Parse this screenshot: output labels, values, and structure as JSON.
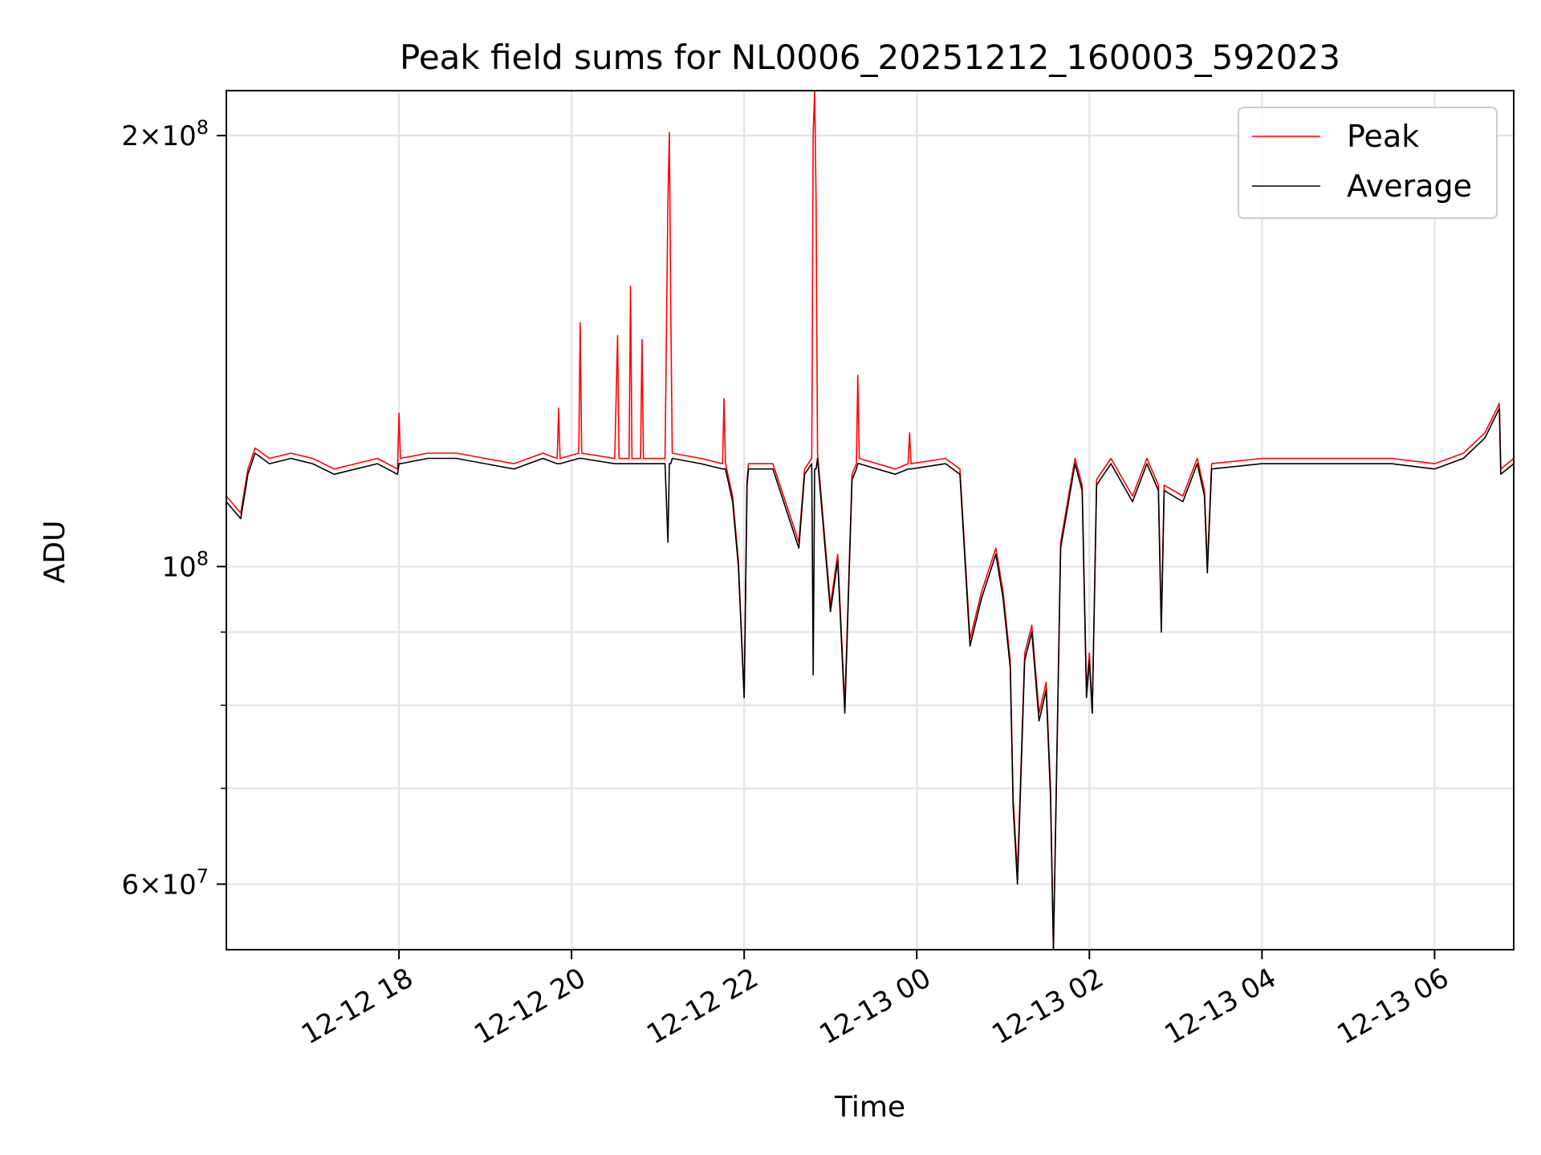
{
  "chart_data": {
    "type": "line",
    "title": "Peak field sums for NL0006_20251212_160003_592023",
    "xlabel": "Time",
    "ylabel": "ADU",
    "yscale": "log",
    "xlim": [
      "2025-12-12 16:00",
      "2025-12-13 06:55"
    ],
    "ylim": [
      54000000,
      215000000
    ],
    "grid": true,
    "legend": "upper-right",
    "x_ticks": [
      {
        "label": "12-12 18",
        "t": "2025-12-12 18:00"
      },
      {
        "label": "12-12 20",
        "t": "2025-12-12 20:00"
      },
      {
        "label": "12-12 22",
        "t": "2025-12-12 22:00"
      },
      {
        "label": "12-13 00",
        "t": "2025-12-13 00:00"
      },
      {
        "label": "12-13 02",
        "t": "2025-12-13 02:00"
      },
      {
        "label": "12-13 04",
        "t": "2025-12-13 04:00"
      },
      {
        "label": "12-13 06",
        "t": "2025-12-13 06:00"
      }
    ],
    "y_ticks_major": [
      {
        "label": "6×10⁷",
        "mant": "6",
        "exp": "7",
        "value": 60000000
      },
      {
        "label": "10⁸",
        "mant": "",
        "exp": "8",
        "value": 100000000
      },
      {
        "label": "2×10⁸",
        "mant": "2",
        "exp": "8",
        "value": 200000000
      }
    ],
    "y_ticks_minor": [
      70000000,
      80000000,
      90000000
    ],
    "series": [
      {
        "name": "Peak",
        "color": "#ff0000",
        "points": [
          [
            "2025-12-12 16:00",
            112000000
          ],
          [
            "2025-12-12 16:10",
            109000000
          ],
          [
            "2025-12-12 16:15",
            117000000
          ],
          [
            "2025-12-12 16:20",
            121000000
          ],
          [
            "2025-12-12 16:30",
            119000000
          ],
          [
            "2025-12-12 16:45",
            120000000
          ],
          [
            "2025-12-12 17:00",
            119000000
          ],
          [
            "2025-12-12 17:15",
            117000000
          ],
          [
            "2025-12-12 17:30",
            118000000
          ],
          [
            "2025-12-12 17:45",
            119000000
          ],
          [
            "2025-12-12 17:59",
            117000000
          ],
          [
            "2025-12-12 18:00",
            128000000
          ],
          [
            "2025-12-12 18:01",
            119000000
          ],
          [
            "2025-12-12 18:20",
            120000000
          ],
          [
            "2025-12-12 18:40",
            120000000
          ],
          [
            "2025-12-12 19:00",
            119000000
          ],
          [
            "2025-12-12 19:20",
            118000000
          ],
          [
            "2025-12-12 19:40",
            120000000
          ],
          [
            "2025-12-12 19:50",
            119000000
          ],
          [
            "2025-12-12 19:51",
            129000000
          ],
          [
            "2025-12-12 19:52",
            119000000
          ],
          [
            "2025-12-12 20:05",
            120000000
          ],
          [
            "2025-12-12 20:06",
            148000000
          ],
          [
            "2025-12-12 20:07",
            120000000
          ],
          [
            "2025-12-12 20:30",
            119000000
          ],
          [
            "2025-12-12 20:32",
            145000000
          ],
          [
            "2025-12-12 20:33",
            119000000
          ],
          [
            "2025-12-12 20:40",
            119000000
          ],
          [
            "2025-12-12 20:41",
            157000000
          ],
          [
            "2025-12-12 20:42",
            119000000
          ],
          [
            "2025-12-12 20:48",
            119000000
          ],
          [
            "2025-12-12 20:49",
            144000000
          ],
          [
            "2025-12-12 20:50",
            119000000
          ],
          [
            "2025-12-12 21:05",
            119000000
          ],
          [
            "2025-12-12 21:07",
            180000000
          ],
          [
            "2025-12-12 21:08",
            201000000
          ],
          [
            "2025-12-12 21:09",
            150000000
          ],
          [
            "2025-12-12 21:10",
            120000000
          ],
          [
            "2025-12-12 21:30",
            119000000
          ],
          [
            "2025-12-12 21:45",
            118000000
          ],
          [
            "2025-12-12 21:46",
            131000000
          ],
          [
            "2025-12-12 21:47",
            118000000
          ],
          [
            "2025-12-12 21:52",
            112000000
          ],
          [
            "2025-12-12 21:56",
            101000000
          ],
          [
            "2025-12-12 22:00",
            81000000
          ],
          [
            "2025-12-12 22:02",
            115000000
          ],
          [
            "2025-12-12 22:03",
            118000000
          ],
          [
            "2025-12-12 22:20",
            118000000
          ],
          [
            "2025-12-12 22:38",
            104000000
          ],
          [
            "2025-12-12 22:42",
            117000000
          ],
          [
            "2025-12-12 22:47",
            119000000
          ],
          [
            "2025-12-12 22:48",
            201000000
          ],
          [
            "2025-12-12 22:49",
            215000000
          ],
          [
            "2025-12-12 22:50",
            180000000
          ],
          [
            "2025-12-12 22:51",
            120000000
          ],
          [
            "2025-12-12 23:00",
            94000000
          ],
          [
            "2025-12-12 23:05",
            102000000
          ],
          [
            "2025-12-12 23:10",
            80000000
          ],
          [
            "2025-12-12 23:15",
            116000000
          ],
          [
            "2025-12-12 23:18",
            118000000
          ],
          [
            "2025-12-12 23:19",
            136000000
          ],
          [
            "2025-12-12 23:20",
            119000000
          ],
          [
            "2025-12-12 23:45",
            117000000
          ],
          [
            "2025-12-12 23:54",
            118000000
          ],
          [
            "2025-12-12 23:55",
            124000000
          ],
          [
            "2025-12-12 23:56",
            118000000
          ],
          [
            "2025-12-13 00:20",
            119000000
          ],
          [
            "2025-12-13 00:30",
            117000000
          ],
          [
            "2025-12-13 00:37",
            89000000
          ],
          [
            "2025-12-13 00:45",
            96000000
          ],
          [
            "2025-12-13 00:55",
            103000000
          ],
          [
            "2025-12-13 01:00",
            96000000
          ],
          [
            "2025-12-13 01:05",
            86000000
          ],
          [
            "2025-12-13 01:07",
            69000000
          ],
          [
            "2025-12-13 01:10",
            61000000
          ],
          [
            "2025-12-13 01:15",
            87000000
          ],
          [
            "2025-12-13 01:20",
            91000000
          ],
          [
            "2025-12-13 01:25",
            79000000
          ],
          [
            "2025-12-13 01:30",
            83000000
          ],
          [
            "2025-12-13 01:33",
            70000000
          ],
          [
            "2025-12-13 01:35",
            54000000
          ],
          [
            "2025-12-13 01:40",
            104000000
          ],
          [
            "2025-12-13 01:50",
            119000000
          ],
          [
            "2025-12-13 01:55",
            114000000
          ],
          [
            "2025-12-13 01:58",
            82000000
          ],
          [
            "2025-12-13 02:00",
            87000000
          ],
          [
            "2025-12-13 02:02",
            79000000
          ],
          [
            "2025-12-13 02:05",
            115000000
          ],
          [
            "2025-12-13 02:15",
            119000000
          ],
          [
            "2025-12-13 02:30",
            112000000
          ],
          [
            "2025-12-13 02:40",
            119000000
          ],
          [
            "2025-12-13 02:48",
            114000000
          ],
          [
            "2025-12-13 02:50",
            91000000
          ],
          [
            "2025-12-13 02:52",
            114000000
          ],
          [
            "2025-12-13 03:05",
            112000000
          ],
          [
            "2025-12-13 03:15",
            119000000
          ],
          [
            "2025-12-13 03:20",
            113000000
          ],
          [
            "2025-12-13 03:22",
            100000000
          ],
          [
            "2025-12-13 03:25",
            118000000
          ],
          [
            "2025-12-13 04:00",
            119000000
          ],
          [
            "2025-12-13 04:30",
            119000000
          ],
          [
            "2025-12-13 05:00",
            119000000
          ],
          [
            "2025-12-13 05:30",
            119000000
          ],
          [
            "2025-12-13 06:00",
            118000000
          ],
          [
            "2025-12-13 06:20",
            120000000
          ],
          [
            "2025-12-13 06:35",
            124000000
          ],
          [
            "2025-12-13 06:45",
            130000000
          ],
          [
            "2025-12-13 06:46",
            117000000
          ],
          [
            "2025-12-13 06:55",
            119000000
          ]
        ]
      },
      {
        "name": "Average",
        "color": "#000000",
        "points": [
          [
            "2025-12-12 16:00",
            111000000
          ],
          [
            "2025-12-12 16:10",
            108000000
          ],
          [
            "2025-12-12 16:15",
            116000000
          ],
          [
            "2025-12-12 16:20",
            120000000
          ],
          [
            "2025-12-12 16:30",
            118000000
          ],
          [
            "2025-12-12 16:45",
            119000000
          ],
          [
            "2025-12-12 17:00",
            118000000
          ],
          [
            "2025-12-12 17:15",
            116000000
          ],
          [
            "2025-12-12 17:30",
            117000000
          ],
          [
            "2025-12-12 17:45",
            118000000
          ],
          [
            "2025-12-12 17:59",
            116000000
          ],
          [
            "2025-12-12 18:00",
            118000000
          ],
          [
            "2025-12-12 18:01",
            118000000
          ],
          [
            "2025-12-12 18:20",
            119000000
          ],
          [
            "2025-12-12 18:40",
            119000000
          ],
          [
            "2025-12-12 19:00",
            118000000
          ],
          [
            "2025-12-12 19:20",
            117000000
          ],
          [
            "2025-12-12 19:40",
            119000000
          ],
          [
            "2025-12-12 19:50",
            118000000
          ],
          [
            "2025-12-12 19:51",
            118000000
          ],
          [
            "2025-12-12 19:52",
            118000000
          ],
          [
            "2025-12-12 20:05",
            119000000
          ],
          [
            "2025-12-12 20:06",
            119000000
          ],
          [
            "2025-12-12 20:07",
            119000000
          ],
          [
            "2025-12-12 20:30",
            118000000
          ],
          [
            "2025-12-12 20:32",
            118000000
          ],
          [
            "2025-12-12 20:33",
            118000000
          ],
          [
            "2025-12-12 20:40",
            118000000
          ],
          [
            "2025-12-12 20:41",
            118000000
          ],
          [
            "2025-12-12 20:42",
            118000000
          ],
          [
            "2025-12-12 20:48",
            118000000
          ],
          [
            "2025-12-12 20:49",
            118000000
          ],
          [
            "2025-12-12 20:50",
            118000000
          ],
          [
            "2025-12-12 21:05",
            118000000
          ],
          [
            "2025-12-12 21:07",
            104000000
          ],
          [
            "2025-12-12 21:08",
            118000000
          ],
          [
            "2025-12-12 21:09",
            118000000
          ],
          [
            "2025-12-12 21:10",
            119000000
          ],
          [
            "2025-12-12 21:30",
            118000000
          ],
          [
            "2025-12-12 21:45",
            117000000
          ],
          [
            "2025-12-12 21:46",
            117000000
          ],
          [
            "2025-12-12 21:47",
            117000000
          ],
          [
            "2025-12-12 21:52",
            111000000
          ],
          [
            "2025-12-12 21:56",
            100000000
          ],
          [
            "2025-12-12 22:00",
            81000000
          ],
          [
            "2025-12-12 22:02",
            114000000
          ],
          [
            "2025-12-12 22:03",
            117000000
          ],
          [
            "2025-12-12 22:20",
            117000000
          ],
          [
            "2025-12-12 22:38",
            103000000
          ],
          [
            "2025-12-12 22:42",
            116000000
          ],
          [
            "2025-12-12 22:47",
            118000000
          ],
          [
            "2025-12-12 22:48",
            84000000
          ],
          [
            "2025-12-12 22:49",
            117000000
          ],
          [
            "2025-12-12 22:50",
            117000000
          ],
          [
            "2025-12-12 22:51",
            119000000
          ],
          [
            "2025-12-12 23:00",
            93000000
          ],
          [
            "2025-12-12 23:05",
            101000000
          ],
          [
            "2025-12-12 23:10",
            79000000
          ],
          [
            "2025-12-12 23:15",
            115000000
          ],
          [
            "2025-12-12 23:18",
            117000000
          ],
          [
            "2025-12-12 23:19",
            118000000
          ],
          [
            "2025-12-12 23:20",
            118000000
          ],
          [
            "2025-12-12 23:45",
            116000000
          ],
          [
            "2025-12-12 23:54",
            117000000
          ],
          [
            "2025-12-12 23:55",
            117000000
          ],
          [
            "2025-12-12 23:56",
            117000000
          ],
          [
            "2025-12-13 00:20",
            118000000
          ],
          [
            "2025-12-13 00:30",
            116000000
          ],
          [
            "2025-12-13 00:37",
            88000000
          ],
          [
            "2025-12-13 00:45",
            95000000
          ],
          [
            "2025-12-13 00:55",
            102000000
          ],
          [
            "2025-12-13 01:00",
            95000000
          ],
          [
            "2025-12-13 01:05",
            85000000
          ],
          [
            "2025-12-13 01:07",
            68000000
          ],
          [
            "2025-12-13 01:10",
            60000000
          ],
          [
            "2025-12-13 01:15",
            86000000
          ],
          [
            "2025-12-13 01:20",
            90000000
          ],
          [
            "2025-12-13 01:25",
            78000000
          ],
          [
            "2025-12-13 01:30",
            82000000
          ],
          [
            "2025-12-13 01:33",
            69000000
          ],
          [
            "2025-12-13 01:35",
            54000000
          ],
          [
            "2025-12-13 01:40",
            103000000
          ],
          [
            "2025-12-13 01:50",
            118000000
          ],
          [
            "2025-12-13 01:55",
            113000000
          ],
          [
            "2025-12-13 01:58",
            81000000
          ],
          [
            "2025-12-13 02:00",
            86000000
          ],
          [
            "2025-12-13 02:02",
            79000000
          ],
          [
            "2025-12-13 02:05",
            114000000
          ],
          [
            "2025-12-13 02:15",
            118000000
          ],
          [
            "2025-12-13 02:30",
            111000000
          ],
          [
            "2025-12-13 02:40",
            118000000
          ],
          [
            "2025-12-13 02:48",
            113000000
          ],
          [
            "2025-12-13 02:50",
            90000000
          ],
          [
            "2025-12-13 02:52",
            113000000
          ],
          [
            "2025-12-13 03:05",
            111000000
          ],
          [
            "2025-12-13 03:15",
            118000000
          ],
          [
            "2025-12-13 03:20",
            112000000
          ],
          [
            "2025-12-13 03:22",
            99000000
          ],
          [
            "2025-12-13 03:25",
            117000000
          ],
          [
            "2025-12-13 04:00",
            118000000
          ],
          [
            "2025-12-13 04:30",
            118000000
          ],
          [
            "2025-12-13 05:00",
            118000000
          ],
          [
            "2025-12-13 05:30",
            118000000
          ],
          [
            "2025-12-13 06:00",
            117000000
          ],
          [
            "2025-12-13 06:20",
            119000000
          ],
          [
            "2025-12-13 06:35",
            123000000
          ],
          [
            "2025-12-13 06:45",
            129000000
          ],
          [
            "2025-12-13 06:46",
            116000000
          ],
          [
            "2025-12-13 06:55",
            118000000
          ]
        ]
      }
    ]
  }
}
